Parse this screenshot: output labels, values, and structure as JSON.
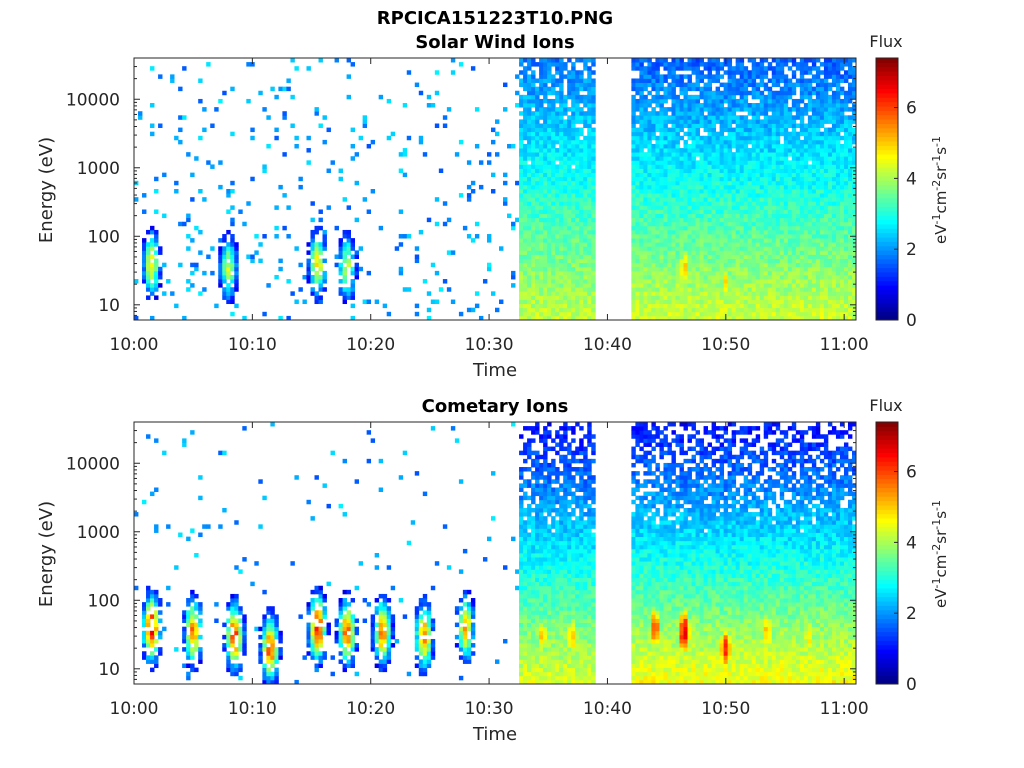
{
  "figure_title": "RPCICA151223T10.PNG",
  "colorbar": {
    "title": "Flux",
    "label": "eV-1cm-2sr-1s-1",
    "min": 0,
    "max": 7.4,
    "ticks": [
      0,
      2,
      4,
      6
    ],
    "tick_labels": [
      "0",
      "2",
      "4",
      "6"
    ],
    "colormap": "jet"
  },
  "chart_data": [
    {
      "type": "heatmap",
      "title": "Solar Wind Ions",
      "xlabel": "Time",
      "ylabel": "Energy (eV)",
      "yscale": "log",
      "x_ticks": [
        "10:00",
        "10:10",
        "10:20",
        "10:30",
        "10:40",
        "10:50",
        "11:00"
      ],
      "x_tick_minutes": [
        0,
        10,
        20,
        30,
        40,
        50,
        60
      ],
      "xlim_minutes": [
        0,
        61
      ],
      "y_ticks": [
        10,
        100,
        1000,
        10000
      ],
      "y_tick_labels": [
        "10",
        "100",
        "1000",
        "10000"
      ],
      "ylim": [
        6,
        40000
      ],
      "data_gap_minutes": [
        39,
        42
      ],
      "segments": [
        {
          "start_min": 0,
          "end_min": 32.5,
          "mode": "sparse",
          "flux_range": [
            1.5,
            4.5
          ]
        },
        {
          "start_min": 32.5,
          "end_min": 39,
          "mode": "dense",
          "flux_low_energy": 4.2,
          "flux_high_energy": 1.8
        },
        {
          "start_min": 42,
          "end_min": 61,
          "mode": "dense",
          "flux_low_energy": 4.3,
          "flux_high_energy": 1.6
        }
      ],
      "enhancements": [
        {
          "minute": 1.5,
          "energy_eV": 40,
          "flux": 4.6
        },
        {
          "minute": 8,
          "energy_eV": 35,
          "flux": 4.2
        },
        {
          "minute": 15.5,
          "energy_eV": 40,
          "flux": 4.8
        },
        {
          "minute": 18,
          "energy_eV": 35,
          "flux": 4.4
        },
        {
          "minute": 46.5,
          "energy_eV": 35,
          "flux": 5.0
        },
        {
          "minute": 50,
          "energy_eV": 20,
          "flux": 4.8
        }
      ]
    },
    {
      "type": "heatmap",
      "title": "Cometary Ions",
      "xlabel": "Time",
      "ylabel": "Energy (eV)",
      "yscale": "log",
      "x_ticks": [
        "10:00",
        "10:10",
        "10:20",
        "10:30",
        "10:40",
        "10:50",
        "11:00"
      ],
      "x_tick_minutes": [
        0,
        10,
        20,
        30,
        40,
        50,
        60
      ],
      "xlim_minutes": [
        0,
        61
      ],
      "y_ticks": [
        10,
        100,
        1000,
        10000
      ],
      "y_tick_labels": [
        "10",
        "100",
        "1000",
        "10000"
      ],
      "ylim": [
        6,
        40000
      ],
      "data_gap_minutes": [
        39,
        42
      ],
      "segments": [
        {
          "start_min": 0,
          "end_min": 32.5,
          "mode": "sparse",
          "flux_range": [
            1.5,
            6.5
          ]
        },
        {
          "start_min": 32.5,
          "end_min": 39,
          "mode": "dense",
          "flux_low_energy": 4.4,
          "flux_high_energy": 1.0
        },
        {
          "start_min": 42,
          "end_min": 61,
          "mode": "dense",
          "flux_low_energy": 4.6,
          "flux_high_energy": 1.0
        }
      ],
      "enhancements": [
        {
          "minute": 1.5,
          "energy_eV": 40,
          "flux": 6.5
        },
        {
          "minute": 5,
          "energy_eV": 35,
          "flux": 5.6
        },
        {
          "minute": 8.5,
          "energy_eV": 30,
          "flux": 6.2
        },
        {
          "minute": 11.5,
          "energy_eV": 20,
          "flux": 6.0
        },
        {
          "minute": 15.5,
          "energy_eV": 40,
          "flux": 6.5
        },
        {
          "minute": 18,
          "energy_eV": 35,
          "flux": 6.0
        },
        {
          "minute": 21,
          "energy_eV": 35,
          "flux": 5.8
        },
        {
          "minute": 24.5,
          "energy_eV": 30,
          "flux": 5.6
        },
        {
          "minute": 28,
          "energy_eV": 40,
          "flux": 5.2
        },
        {
          "minute": 34.5,
          "energy_eV": 30,
          "flux": 5.0
        },
        {
          "minute": 37,
          "energy_eV": 30,
          "flux": 5.2
        },
        {
          "minute": 44,
          "energy_eV": 40,
          "flux": 6.0
        },
        {
          "minute": 46.5,
          "energy_eV": 35,
          "flux": 6.8
        },
        {
          "minute": 50,
          "energy_eV": 20,
          "flux": 6.2
        },
        {
          "minute": 53.5,
          "energy_eV": 35,
          "flux": 5.2
        },
        {
          "minute": 57,
          "energy_eV": 30,
          "flux": 4.8
        }
      ]
    }
  ]
}
